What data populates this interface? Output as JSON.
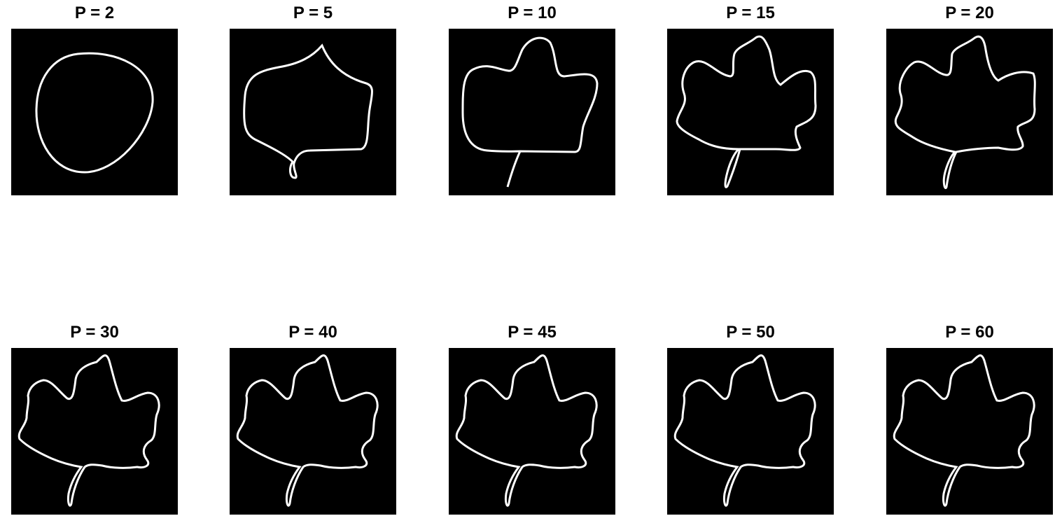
{
  "figure": {
    "background": "#000000",
    "stroke": "#ffffff",
    "panels": [
      {
        "title": "P = 2",
        "shape": "blob"
      },
      {
        "title": "P = 5",
        "shape": "rough-leaf"
      },
      {
        "title": "P = 10",
        "shape": "lobed-leaf"
      },
      {
        "title": "P = 15",
        "shape": "maple-leaf"
      },
      {
        "title": "P = 20",
        "shape": "maple-leaf"
      },
      {
        "title": "P = 30",
        "shape": "maple-leaf"
      },
      {
        "title": "P = 40",
        "shape": "maple-leaf"
      },
      {
        "title": "P = 45",
        "shape": "maple-leaf"
      },
      {
        "title": "P = 50",
        "shape": "maple-leaf"
      },
      {
        "title": "P = 60",
        "shape": "maple-leaf"
      }
    ]
  }
}
